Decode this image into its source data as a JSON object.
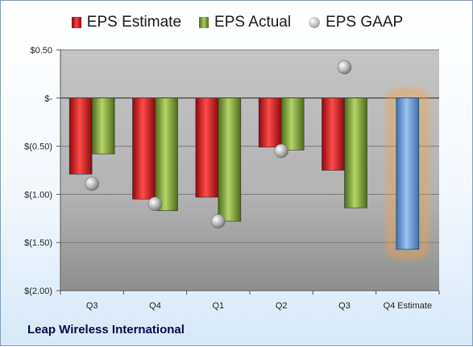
{
  "chart_data": {
    "type": "bar",
    "categories": [
      "Q3",
      "Q4",
      "Q1",
      "Q2",
      "Q3",
      "Q4 Estimate"
    ],
    "series": [
      {
        "name": "EPS Estimate",
        "values": [
          -0.79,
          -1.05,
          -1.03,
          -0.51,
          -0.75,
          null
        ]
      },
      {
        "name": "EPS Actual",
        "values": [
          -0.58,
          -1.17,
          -1.28,
          -0.54,
          -1.14,
          -1.57
        ]
      },
      {
        "name": "EPS GAAP",
        "values": [
          -0.89,
          -1.1,
          -1.28,
          -0.55,
          0.32,
          null
        ]
      }
    ],
    "highlighted_category": "Q4 Estimate",
    "y_ticks": [
      0.5,
      0,
      -0.5,
      -1.0,
      -1.5,
      -2.0
    ],
    "y_tick_labels": [
      "$0.50",
      "$-",
      "$(0.50)",
      "$(1.00)",
      "$(1.50)",
      "$(2.00)"
    ],
    "ylim": [
      -2.0,
      0.5
    ],
    "grid": true,
    "legend_position": "top",
    "colors": {
      "estimate": "#d92020",
      "actual": "#8db43f",
      "gaap": "#b0b0b0",
      "projection": "#6699d8",
      "projection_glow": "#f5a040"
    }
  },
  "footer": {
    "company": "Leap Wireless International"
  }
}
